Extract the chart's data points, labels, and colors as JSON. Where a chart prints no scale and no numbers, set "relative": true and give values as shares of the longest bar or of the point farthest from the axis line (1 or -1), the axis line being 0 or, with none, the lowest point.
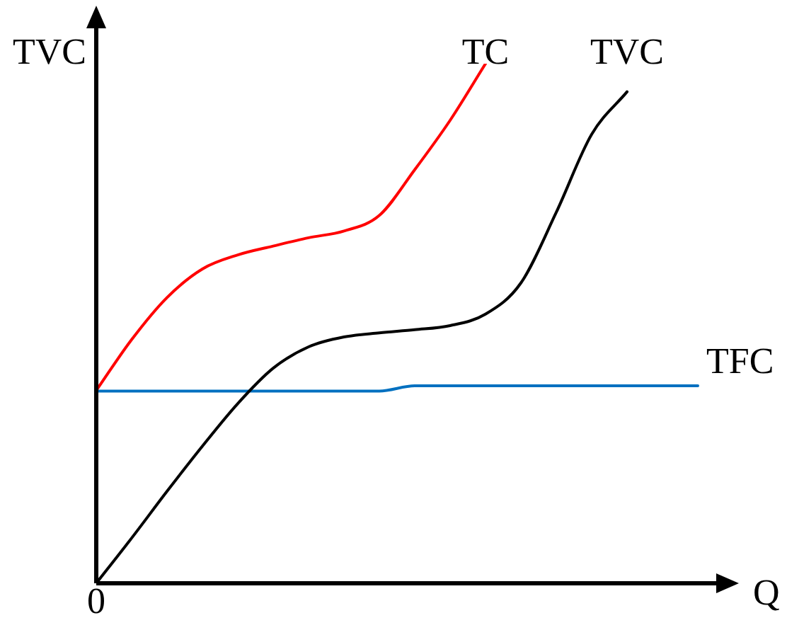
{
  "chart_data": {
    "type": "line",
    "relative": true,
    "xlabel": "Q",
    "ylabel": "TVC",
    "annotations": [
      "0"
    ],
    "categories": [
      null,
      null,
      null,
      null,
      null,
      null,
      null,
      null,
      null,
      null,
      null,
      null,
      null,
      null,
      null,
      null,
      null,
      null
    ],
    "series": [
      {
        "name": "TC",
        "color": "#ff0000",
        "values": [
          0.371,
          0.469,
          0.55,
          0.605,
          0.632,
          0.649,
          0.665,
          0.678,
          0.708,
          0.796,
          0.891,
          1,
          null,
          null,
          null,
          null,
          null,
          null
        ]
      },
      {
        "name": "TVC",
        "color": "#000000",
        "values": [
          0,
          0.087,
          0.177,
          0.264,
          0.346,
          0.414,
          0.455,
          0.474,
          0.482,
          0.488,
          0.496,
          0.518,
          0.578,
          0.714,
          0.864,
          0.946,
          null,
          null
        ]
      },
      {
        "name": "TFC",
        "color": "#0070c0",
        "values": [
          0.37,
          0.37,
          0.37,
          0.37,
          0.37,
          0.37,
          0.37,
          0.37,
          0.37,
          0.38,
          0.38,
          0.38,
          0.38,
          0.38,
          0.38,
          0.38,
          0.38,
          0.38
        ]
      }
    ],
    "legend": false,
    "marker": "none",
    "line_style": "solid"
  }
}
